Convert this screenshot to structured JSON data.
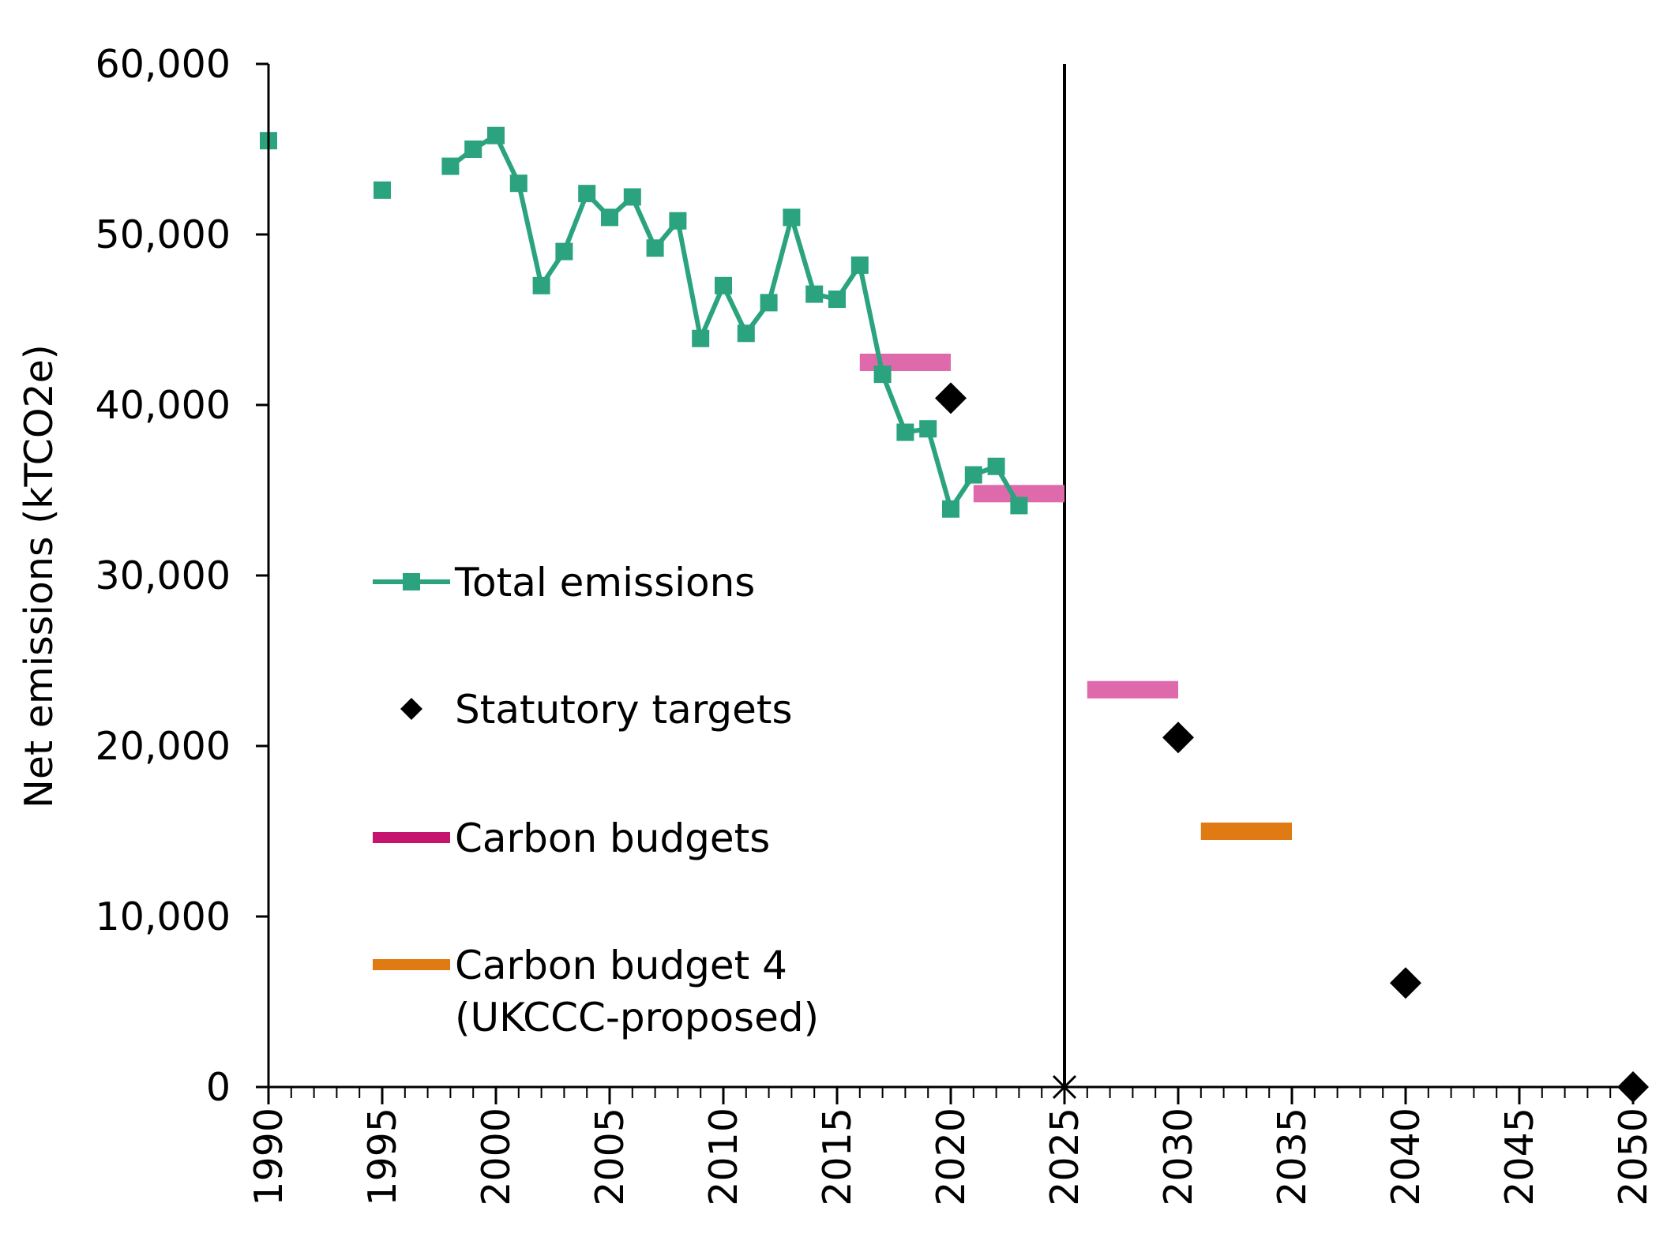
{
  "chart_data": {
    "type": "line",
    "title": "",
    "xlabel": "",
    "ylabel": "Net emissions (kTCO2e)",
    "xlim": [
      1990,
      2050
    ],
    "ylim": [
      0,
      60000
    ],
    "y_ticks": [
      "0",
      "10,000",
      "20,000",
      "30,000",
      "40,000",
      "50,000",
      "60,000"
    ],
    "y_tick_values": [
      0,
      10000,
      20000,
      30000,
      40000,
      50000,
      60000
    ],
    "x_ticks": [
      "1990",
      "1995",
      "2000",
      "2005",
      "2010",
      "2015",
      "2020",
      "2025",
      "2030",
      "2035",
      "2040",
      "2045",
      "2050"
    ],
    "x_tick_values": [
      1990,
      1995,
      2000,
      2005,
      2010,
      2015,
      2020,
      2025,
      2030,
      2035,
      2040,
      2045,
      2050
    ],
    "vertical_line_year": 2025,
    "grid": false,
    "series": [
      {
        "name": "Total emissions",
        "kind": "line-markers",
        "color": "#2aa37e",
        "points": [
          {
            "x": 1990,
            "y": 55500
          },
          {
            "x": 1995,
            "y": 52600
          },
          {
            "x": 1998,
            "y": 54000
          },
          {
            "x": 1999,
            "y": 55000
          },
          {
            "x": 2000,
            "y": 55800
          },
          {
            "x": 2001,
            "y": 53000
          },
          {
            "x": 2002,
            "y": 47000
          },
          {
            "x": 2003,
            "y": 49000
          },
          {
            "x": 2004,
            "y": 52400
          },
          {
            "x": 2005,
            "y": 51000
          },
          {
            "x": 2006,
            "y": 52200
          },
          {
            "x": 2007,
            "y": 49200
          },
          {
            "x": 2008,
            "y": 50800
          },
          {
            "x": 2009,
            "y": 43900
          },
          {
            "x": 2010,
            "y": 47000
          },
          {
            "x": 2011,
            "y": 44200
          },
          {
            "x": 2012,
            "y": 46000
          },
          {
            "x": 2013,
            "y": 51000
          },
          {
            "x": 2014,
            "y": 46500
          },
          {
            "x": 2015,
            "y": 46200
          },
          {
            "x": 2016,
            "y": 48200
          },
          {
            "x": 2017,
            "y": 41800
          },
          {
            "x": 2018,
            "y": 38400
          },
          {
            "x": 2019,
            "y": 38600
          },
          {
            "x": 2020,
            "y": 33900
          },
          {
            "x": 2021,
            "y": 35900
          },
          {
            "x": 2022,
            "y": 36400
          },
          {
            "x": 2023,
            "y": 34100
          }
        ],
        "connected_from_year": 1998
      },
      {
        "name": "Statutory targets",
        "kind": "diamond-markers",
        "color": "#000000",
        "points": [
          {
            "x": 2020,
            "y": 40400
          },
          {
            "x": 2030,
            "y": 20500
          },
          {
            "x": 2040,
            "y": 6100
          },
          {
            "x": 2050,
            "y": 0
          }
        ]
      },
      {
        "name": "Carbon budgets",
        "kind": "range-bars",
        "color": "#de6aac",
        "legend_color": "#c4146e",
        "bars": [
          {
            "x_start": 2016,
            "x_end": 2020,
            "y": 42500
          },
          {
            "x_start": 2021,
            "x_end": 2025,
            "y": 34800
          },
          {
            "x_start": 2026,
            "x_end": 2030,
            "y": 23300
          }
        ]
      },
      {
        "name": "Carbon budget 4 (UKCCC-proposed)",
        "kind": "range-bars",
        "color": "#e07a12",
        "legend_color": "#e07a12",
        "bars": [
          {
            "x_start": 2031,
            "x_end": 2035,
            "y": 15000
          }
        ]
      }
    ],
    "legend": {
      "placement": "inside-left",
      "entries": [
        {
          "label_lines": [
            "Total emissions"
          ],
          "symbol": "line-square"
        },
        {
          "label_lines": [
            "Statutory targets"
          ],
          "symbol": "diamond"
        },
        {
          "label_lines": [
            "Carbon budgets"
          ],
          "symbol": "bar"
        },
        {
          "label_lines": [
            "Carbon budget 4",
            "(UKCCC-proposed)"
          ],
          "symbol": "bar"
        }
      ]
    }
  }
}
